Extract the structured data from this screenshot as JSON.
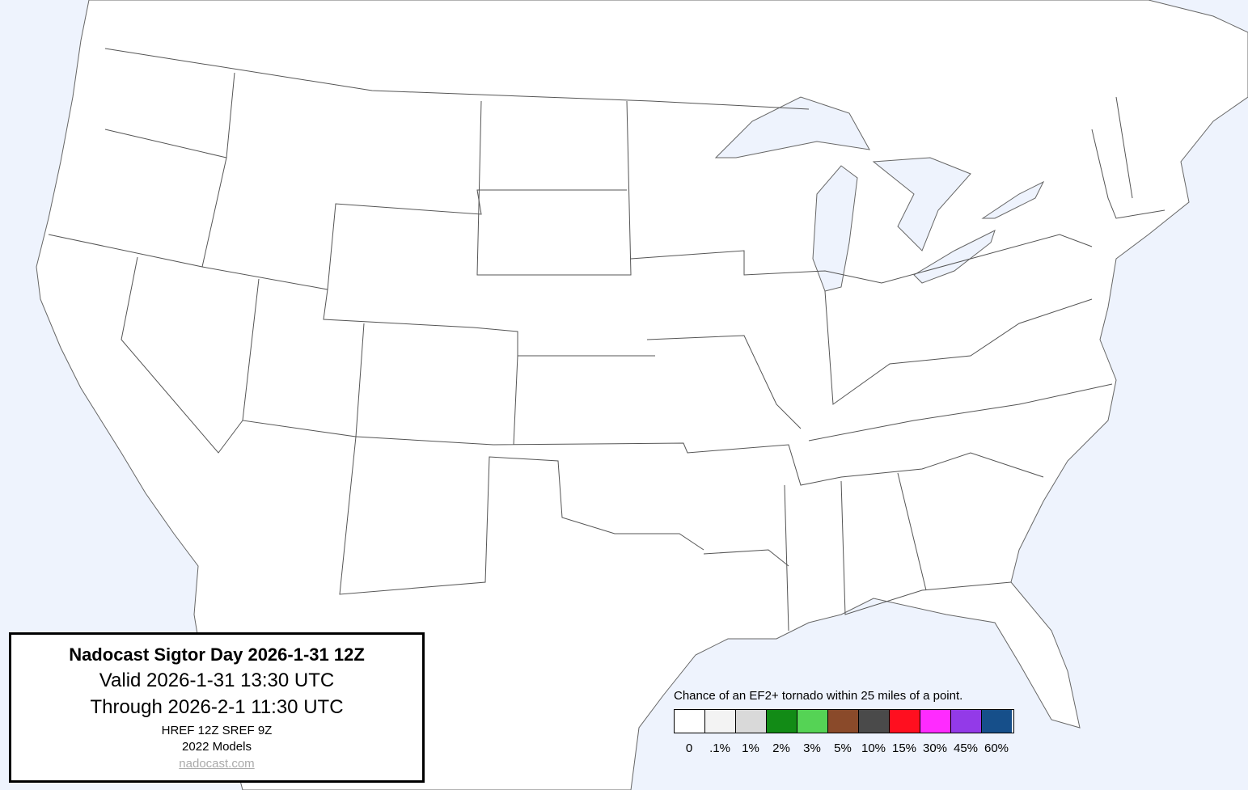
{
  "map": {
    "land_color": "#ffffff",
    "water_color": "#eef3fd",
    "border_color": "#555555"
  },
  "info_box": {
    "title": "Nadocast Sigtor Day 2026-1-31 12Z",
    "valid": "Valid 2026-1-31 13:30 UTC",
    "through": "Through 2026-2-1 11:30 UTC",
    "models": "HREF 12Z SREF 9Z",
    "model_version": "2022 Models",
    "link": "nadocast.com"
  },
  "legend": {
    "title": "Chance of an EF2+ tornado within 25 miles of a point.",
    "bins": [
      {
        "label": "0",
        "color": "#ffffff"
      },
      {
        "label": ".1%",
        "color": "#f3f3f3"
      },
      {
        "label": "1%",
        "color": "#d9d9d9"
      },
      {
        "label": "2%",
        "color": "#128b16"
      },
      {
        "label": "3%",
        "color": "#55d355"
      },
      {
        "label": "5%",
        "color": "#8a4a2a"
      },
      {
        "label": "10%",
        "color": "#4a4a4a"
      },
      {
        "label": "15%",
        "color": "#ff0f1f"
      },
      {
        "label": "30%",
        "color": "#ff2bff"
      },
      {
        "label": "45%",
        "color": "#933ae8"
      },
      {
        "label": "60%",
        "color": "#164f8a"
      }
    ]
  }
}
